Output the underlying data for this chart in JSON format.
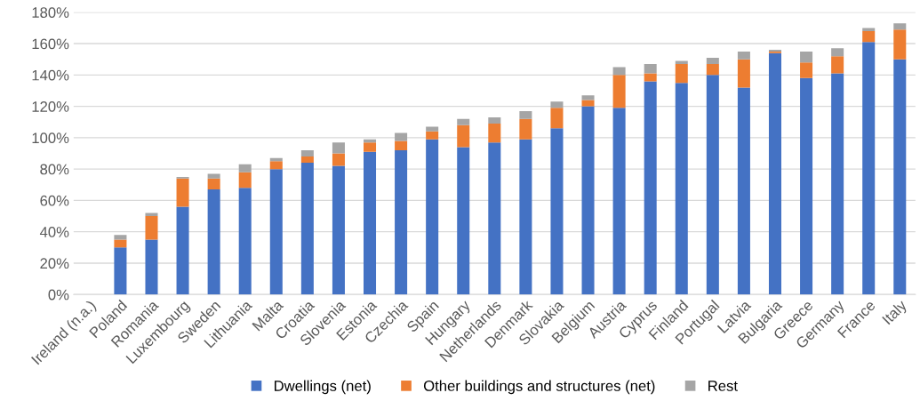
{
  "chart_data": {
    "type": "bar",
    "stacked": true,
    "categories": [
      "Ireland (n.a.)",
      "Poland",
      "Romania",
      "Luxembourg",
      "Sweden",
      "Lithuania",
      "Malta",
      "Croatia",
      "Slovenia",
      "Estonia",
      "Czechia",
      "Spain",
      "Hungary",
      "Netherlands",
      "Denmark",
      "Slovakia",
      "Belgium",
      "Austria",
      "Cyprus",
      "Finland",
      "Portugal",
      "Latvia",
      "Bulgaria",
      "Greece",
      "Germany",
      "France",
      "Italy"
    ],
    "series": [
      {
        "name": "Dwellings (net)",
        "color": "#4472c4",
        "values": [
          null,
          30,
          35,
          56,
          67,
          68,
          80,
          84,
          82,
          91,
          92,
          99,
          94,
          97,
          99,
          106,
          120,
          119,
          136,
          135,
          140,
          132,
          154,
          138,
          141,
          161,
          150
        ]
      },
      {
        "name": "Other buildings and structures (net)",
        "color": "#ed7d31",
        "values": [
          null,
          5,
          15,
          18,
          7,
          10,
          5,
          4,
          8,
          6,
          6,
          5,
          14,
          12,
          13,
          13,
          4,
          21,
          5,
          12,
          7,
          18,
          1,
          10,
          11,
          7,
          19
        ]
      },
      {
        "name": "Rest",
        "color": "#a5a5a5",
        "values": [
          null,
          3,
          2,
          1,
          3,
          5,
          2,
          4,
          7,
          2,
          5,
          3,
          4,
          4,
          5,
          4,
          3,
          5,
          6,
          2,
          4,
          5,
          1,
          7,
          5,
          2,
          4
        ]
      }
    ],
    "ylim": [
      0,
      180
    ],
    "yticks": [
      {
        "value": 0,
        "label": "0%"
      },
      {
        "value": 20,
        "label": "20%"
      },
      {
        "value": 40,
        "label": "40%"
      },
      {
        "value": 60,
        "label": "60%"
      },
      {
        "value": 80,
        "label": "80%"
      },
      {
        "value": 100,
        "label": "100%"
      },
      {
        "value": 120,
        "label": "120%"
      },
      {
        "value": 140,
        "label": "140%"
      },
      {
        "value": 160,
        "label": "160%"
      },
      {
        "value": 180,
        "label": "180%"
      }
    ],
    "grid": "y",
    "legend": "bottom"
  }
}
